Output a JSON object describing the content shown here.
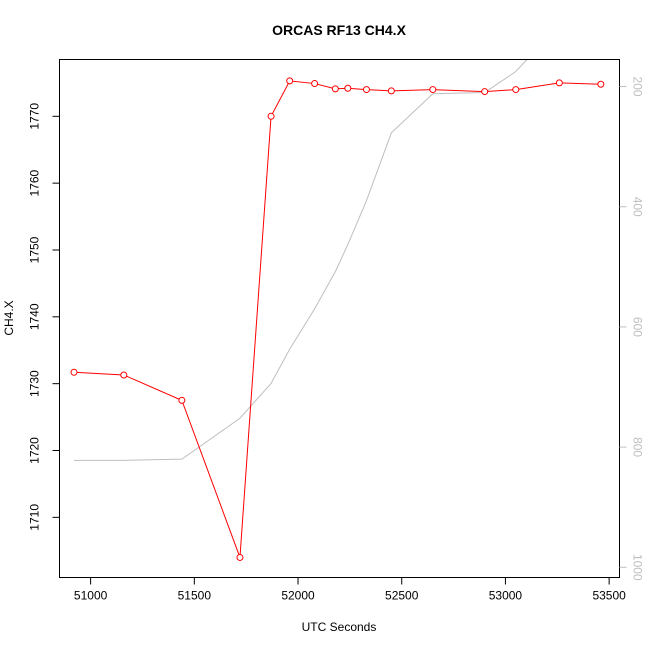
{
  "chart_data": {
    "type": "line",
    "title": "ORCAS RF13 CH4.X",
    "xlabel": "UTC Seconds",
    "ylabel": "CH4.X",
    "xlim": [
      50850,
      53550
    ],
    "ylim": [
      1701,
      1778.5
    ],
    "x_ticks": [
      51000,
      51500,
      52000,
      52500,
      53000,
      53500
    ],
    "x_tick_labels": [
      "51000",
      "51500",
      "52000",
      "52500",
      "53000",
      "53500"
    ],
    "y_ticks": [
      1710,
      1720,
      1730,
      1740,
      1750,
      1760,
      1770
    ],
    "y_tick_labels": [
      "1710",
      "1720",
      "1730",
      "1740",
      "1750",
      "1760",
      "1770"
    ],
    "y2_lim": [
      1017,
      155
    ],
    "y2_ticks": [
      200,
      400,
      600,
      800,
      1000
    ],
    "y2_tick_labels": [
      "200",
      "400",
      "600",
      "800",
      "1000"
    ],
    "grid": false,
    "series": [
      {
        "axis": "left",
        "color": "#ff0000",
        "style": "line+circle",
        "x": [
          50920,
          51160,
          51440,
          51720,
          51870,
          51960,
          52080,
          52180,
          52240,
          52330,
          52450,
          52650,
          52900,
          53050,
          53260,
          53460
        ],
        "y": [
          1731.7,
          1731.3,
          1727.5,
          1704.0,
          1770.0,
          1775.3,
          1774.9,
          1774.1,
          1774.2,
          1774.0,
          1773.8,
          1774.0,
          1773.7,
          1774.0,
          1775.0,
          1774.8
        ]
      },
      {
        "axis": "right",
        "color": "#bebebe",
        "style": "line",
        "x": [
          50920,
          51160,
          51440,
          51720,
          51870,
          51960,
          52080,
          52180,
          52240,
          52330,
          52450,
          52650,
          52900,
          53050,
          53260
        ],
        "y": [
          822,
          822,
          820,
          752,
          694,
          637,
          570,
          508,
          463,
          390,
          277,
          212,
          210,
          175,
          97
        ]
      }
    ]
  }
}
